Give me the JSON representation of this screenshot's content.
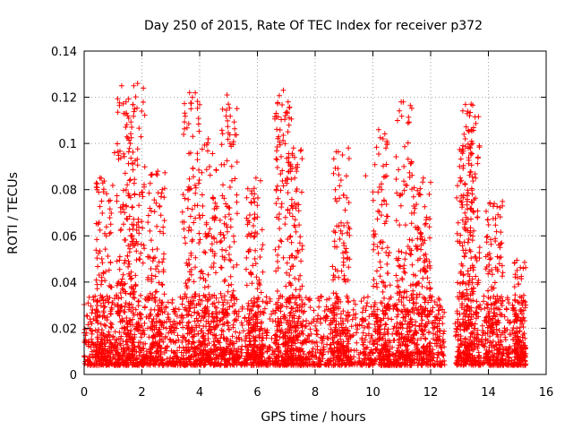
{
  "chart_data": {
    "type": "scatter",
    "title": "Day 250 of 2015, Rate Of TEC Index for receiver p372",
    "xlabel": "GPS time / hours",
    "ylabel": "ROTI / TECUs",
    "xlim": [
      0,
      16
    ],
    "ylim": [
      0,
      0.14
    ],
    "x_ticks": [
      "0",
      "2",
      "4",
      "6",
      "8",
      "10",
      "12",
      "14",
      "16"
    ],
    "y_ticks": [
      "0",
      "0.02",
      "0.04",
      "0.06",
      "0.08",
      "0.1",
      "0.12",
      "0.14"
    ],
    "grid": true,
    "marker": "+",
    "color": "#ff0000",
    "gap_hours": [
      12.5,
      12.85
    ],
    "data_x_range": [
      0,
      15.3
    ],
    "bursts": [
      {
        "x": 0.7,
        "peak": 0.085
      },
      {
        "x": 1.4,
        "peak": 0.125
      },
      {
        "x": 1.8,
        "peak": 0.125
      },
      {
        "x": 2.5,
        "peak": 0.088
      },
      {
        "x": 3.7,
        "peak": 0.122
      },
      {
        "x": 4.3,
        "peak": 0.102
      },
      {
        "x": 5.0,
        "peak": 0.121
      },
      {
        "x": 5.9,
        "peak": 0.085
      },
      {
        "x": 6.9,
        "peak": 0.123
      },
      {
        "x": 7.3,
        "peak": 0.098
      },
      {
        "x": 8.9,
        "peak": 0.098
      },
      {
        "x": 10.3,
        "peak": 0.106
      },
      {
        "x": 11.1,
        "peak": 0.118
      },
      {
        "x": 11.7,
        "peak": 0.085
      },
      {
        "x": 13.2,
        "peak": 0.102
      },
      {
        "x": 13.4,
        "peak": 0.117
      },
      {
        "x": 14.2,
        "peak": 0.075
      },
      {
        "x": 15.2,
        "peak": 0.05
      }
    ],
    "points": [
      [
        1.3,
        0.125
      ],
      [
        1.85,
        0.126
      ],
      [
        3.65,
        0.122
      ],
      [
        3.75,
        0.12
      ],
      [
        4.95,
        0.121
      ],
      [
        6.9,
        0.123
      ],
      [
        11.05,
        0.118
      ],
      [
        13.4,
        0.117
      ],
      [
        1.45,
        0.118
      ],
      [
        1.75,
        0.115
      ],
      [
        3.7,
        0.115
      ],
      [
        13.35,
        0.112
      ],
      [
        10.2,
        0.106
      ],
      [
        10.35,
        0.102
      ],
      [
        4.3,
        0.102
      ],
      [
        5.05,
        0.1
      ],
      [
        1.6,
        0.1
      ],
      [
        13.2,
        0.102
      ],
      [
        9.15,
        0.098
      ],
      [
        7.25,
        0.098
      ],
      [
        10.45,
        0.098
      ],
      [
        13.45,
        0.1
      ],
      [
        8.95,
        0.095
      ],
      [
        1.05,
        0.096
      ],
      [
        11.75,
        0.085
      ],
      [
        2.55,
        0.088
      ],
      [
        0.55,
        0.085
      ],
      [
        5.95,
        0.085
      ],
      [
        7.15,
        0.09
      ],
      [
        13.0,
        0.09
      ],
      [
        3.6,
        0.08
      ],
      [
        8.7,
        0.08
      ],
      [
        11.95,
        0.078
      ],
      [
        14.2,
        0.074
      ],
      [
        9.75,
        0.086
      ]
    ]
  }
}
